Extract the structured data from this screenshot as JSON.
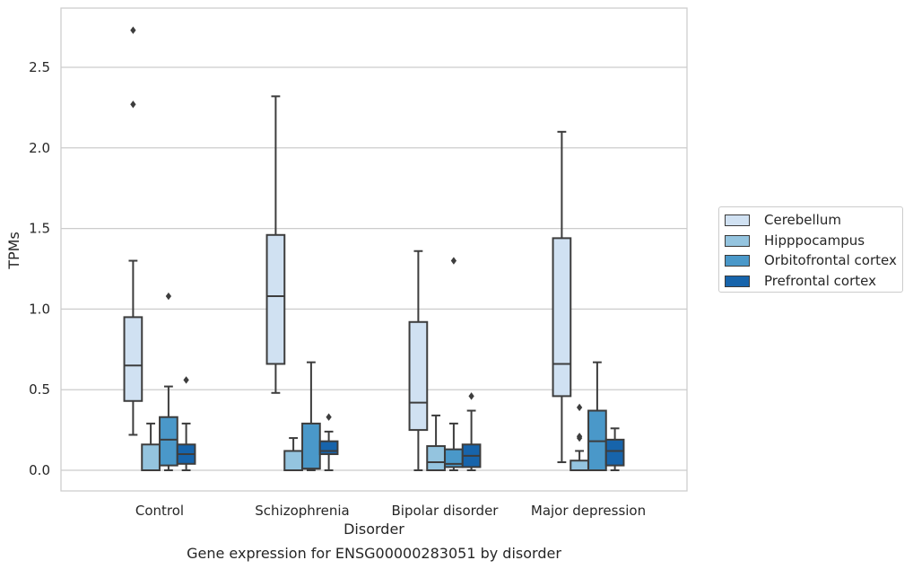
{
  "chart_data": {
    "type": "boxplot",
    "title": "Gene expression for ENSG00000283051 by disorder",
    "xlabel": "Disorder",
    "ylabel": "TPMs",
    "ylim": [
      -0.13,
      2.87
    ],
    "yticks": [
      "0.0",
      "0.5",
      "1.0",
      "1.5",
      "2.0",
      "2.5"
    ],
    "grid": "horizontal",
    "legend_position": "right",
    "categories": [
      "Control",
      "Schizophrenia",
      "Bipolar disorder",
      "Major depression"
    ],
    "series": [
      {
        "name": "Cerebellum",
        "color": "#d0e1f2",
        "boxes": [
          {
            "whisker_low": 0.22,
            "q1": 0.43,
            "median": 0.65,
            "q3": 0.95,
            "whisker_high": 1.3,
            "outliers": [
              2.27,
              2.73
            ]
          },
          {
            "whisker_low": 0.48,
            "q1": 0.66,
            "median": 1.08,
            "q3": 1.46,
            "whisker_high": 2.32,
            "outliers": []
          },
          {
            "whisker_low": 0.0,
            "q1": 0.25,
            "median": 0.42,
            "q3": 0.92,
            "whisker_high": 1.36,
            "outliers": []
          },
          {
            "whisker_low": 0.05,
            "q1": 0.46,
            "median": 0.66,
            "q3": 1.44,
            "whisker_high": 2.1,
            "outliers": []
          }
        ]
      },
      {
        "name": "Hipppocampus",
        "color": "#94c4df",
        "boxes": [
          {
            "whisker_low": 0.0,
            "q1": 0.0,
            "median": 0.0,
            "q3": 0.16,
            "whisker_high": 0.29,
            "outliers": []
          },
          {
            "whisker_low": 0.0,
            "q1": 0.0,
            "median": 0.0,
            "q3": 0.12,
            "whisker_high": 0.2,
            "outliers": []
          },
          {
            "whisker_low": 0.0,
            "q1": 0.0,
            "median": 0.05,
            "q3": 0.15,
            "whisker_high": 0.34,
            "outliers": []
          },
          {
            "whisker_low": 0.0,
            "q1": 0.0,
            "median": 0.0,
            "q3": 0.06,
            "whisker_high": 0.12,
            "outliers": [
              0.2,
              0.21,
              0.39
            ]
          }
        ]
      },
      {
        "name": "Orbitofrontal cortex",
        "color": "#4a98c9",
        "boxes": [
          {
            "whisker_low": 0.0,
            "q1": 0.03,
            "median": 0.19,
            "q3": 0.33,
            "whisker_high": 0.52,
            "outliers": [
              1.08
            ]
          },
          {
            "whisker_low": 0.0,
            "q1": 0.01,
            "median": 0.01,
            "q3": 0.29,
            "whisker_high": 0.67,
            "outliers": []
          },
          {
            "whisker_low": 0.0,
            "q1": 0.02,
            "median": 0.04,
            "q3": 0.13,
            "whisker_high": 0.29,
            "outliers": [
              1.3
            ]
          },
          {
            "whisker_low": 0.0,
            "q1": 0.0,
            "median": 0.18,
            "q3": 0.37,
            "whisker_high": 0.67,
            "outliers": []
          }
        ]
      },
      {
        "name": "Prefrontal cortex",
        "color": "#1764ab",
        "boxes": [
          {
            "whisker_low": 0.0,
            "q1": 0.04,
            "median": 0.1,
            "q3": 0.16,
            "whisker_high": 0.29,
            "outliers": [
              0.56
            ]
          },
          {
            "whisker_low": 0.0,
            "q1": 0.1,
            "median": 0.12,
            "q3": 0.18,
            "whisker_high": 0.24,
            "outliers": [
              0.33
            ]
          },
          {
            "whisker_low": 0.0,
            "q1": 0.02,
            "median": 0.09,
            "q3": 0.16,
            "whisker_high": 0.37,
            "outliers": [
              0.46
            ]
          },
          {
            "whisker_low": 0.0,
            "q1": 0.03,
            "median": 0.12,
            "q3": 0.19,
            "whisker_high": 0.26,
            "outliers": []
          }
        ]
      }
    ]
  }
}
